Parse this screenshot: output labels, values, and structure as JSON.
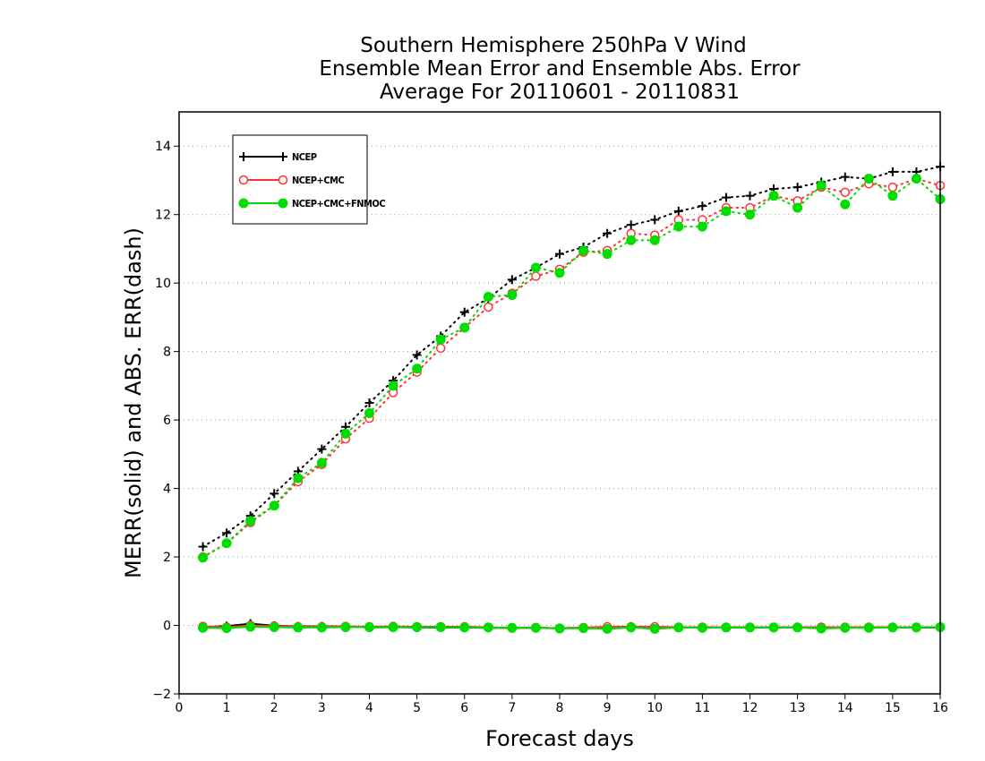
{
  "chart_data": {
    "type": "line",
    "title": [
      "Southern Hemisphere 250hPa V Wind",
      "Ensemble Mean Error and Ensemble Abs. Error",
      "Average For 20110601 - 20110831"
    ],
    "xlabel": "Forecast days",
    "ylabel": "MERR(solid) and ABS. ERR(dash)",
    "xlim": [
      0,
      16
    ],
    "ylim": [
      -2,
      15
    ],
    "x_ticks": [
      0,
      1,
      2,
      3,
      4,
      5,
      6,
      7,
      8,
      9,
      10,
      11,
      12,
      13,
      14,
      15,
      16
    ],
    "y_ticks": [
      -2,
      0,
      2,
      4,
      6,
      8,
      10,
      12,
      14
    ],
    "grid": "horizontal dotted",
    "legend_position": "top-left",
    "x": [
      0.5,
      1,
      1.5,
      2,
      2.5,
      3,
      3.5,
      4,
      4.5,
      5,
      5.5,
      6,
      6.5,
      7,
      7.5,
      8,
      8.5,
      9,
      9.5,
      10,
      10.5,
      11,
      11.5,
      12,
      12.5,
      13,
      13.5,
      14,
      14.5,
      15,
      15.5,
      16
    ],
    "series": [
      {
        "name": "NCEP",
        "color": "#000000",
        "marker": "plus",
        "abs_err": [
          2.3,
          2.7,
          3.2,
          3.85,
          4.5,
          5.15,
          5.8,
          6.5,
          7.15,
          7.9,
          8.45,
          9.15,
          9.55,
          10.1,
          10.45,
          10.85,
          11.05,
          11.45,
          11.7,
          11.85,
          12.1,
          12.25,
          12.5,
          12.55,
          12.75,
          12.8,
          12.95,
          13.1,
          13.05,
          13.25,
          13.25,
          13.4
        ],
        "mean_err": [
          -0.05,
          -0.02,
          0.05,
          -0.01,
          -0.03,
          -0.03,
          -0.03,
          -0.06,
          -0.05,
          -0.06,
          -0.06,
          -0.06,
          -0.07,
          -0.07,
          -0.07,
          -0.08,
          -0.07,
          -0.07,
          -0.06,
          -0.06,
          -0.06,
          -0.06,
          -0.06,
          -0.06,
          -0.06,
          -0.06,
          -0.06,
          -0.06,
          -0.06,
          -0.06,
          -0.06,
          -0.06
        ]
      },
      {
        "name": "NCEP+CMC",
        "color": "#ff3333",
        "marker": "open-circle",
        "abs_err": [
          2.0,
          2.4,
          3.0,
          3.5,
          4.2,
          4.7,
          5.45,
          6.05,
          6.8,
          7.4,
          8.1,
          8.7,
          9.3,
          9.7,
          10.2,
          10.4,
          10.9,
          10.95,
          11.45,
          11.4,
          11.85,
          11.85,
          12.2,
          12.2,
          12.55,
          12.4,
          12.8,
          12.65,
          12.9,
          12.8,
          13.05,
          12.85
        ],
        "mean_err": [
          -0.03,
          -0.05,
          0.0,
          -0.02,
          -0.04,
          -0.04,
          -0.03,
          -0.04,
          -0.03,
          -0.04,
          -0.04,
          -0.04,
          -0.05,
          -0.08,
          -0.06,
          -0.08,
          -0.06,
          -0.04,
          -0.04,
          -0.04,
          -0.05,
          -0.05,
          -0.05,
          -0.05,
          -0.05,
          -0.05,
          -0.05,
          -0.05,
          -0.05,
          -0.05,
          -0.05,
          -0.05
        ]
      },
      {
        "name": "NCEP+CMC+FNMOC",
        "color": "#00dd00",
        "marker": "filled-circle",
        "abs_err": [
          1.98,
          2.4,
          3.05,
          3.5,
          4.3,
          4.75,
          5.6,
          6.2,
          7.0,
          7.5,
          8.35,
          8.7,
          9.6,
          9.65,
          10.45,
          10.3,
          10.95,
          10.85,
          11.25,
          11.25,
          11.65,
          11.65,
          12.1,
          12.0,
          12.55,
          12.2,
          12.85,
          12.3,
          13.05,
          12.55,
          13.05,
          12.45
        ],
        "mean_err": [
          -0.07,
          -0.08,
          -0.04,
          -0.05,
          -0.06,
          -0.06,
          -0.05,
          -0.05,
          -0.05,
          -0.05,
          -0.05,
          -0.06,
          -0.06,
          -0.07,
          -0.07,
          -0.09,
          -0.08,
          -0.1,
          -0.06,
          -0.1,
          -0.06,
          -0.07,
          -0.06,
          -0.06,
          -0.06,
          -0.06,
          -0.09,
          -0.07,
          -0.07,
          -0.06,
          -0.06,
          -0.05
        ]
      }
    ]
  }
}
